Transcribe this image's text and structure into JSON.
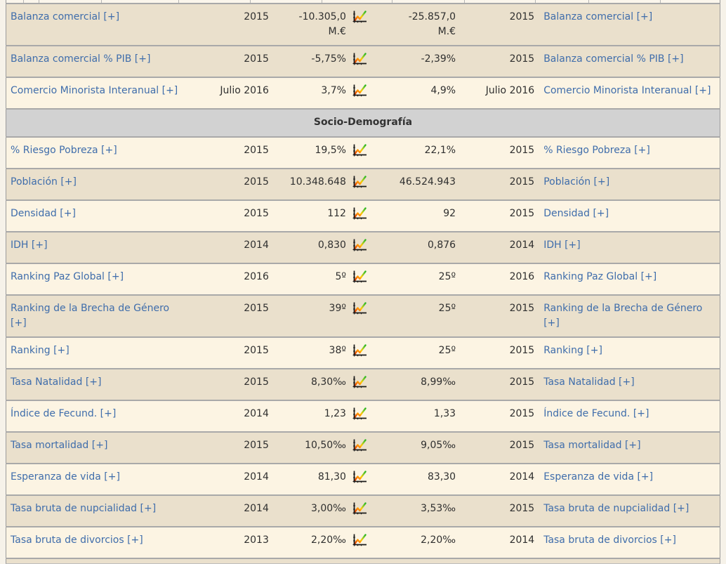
{
  "table": {
    "section_header": "Socio-Demografía",
    "chart_icon": "line-chart-icon",
    "columns": [
      "indicator-left",
      "date-left",
      "value-left",
      "chart",
      "value-right",
      "date-right",
      "indicator-right"
    ],
    "rows": [
      {
        "type": "data",
        "bg": "tan",
        "name": "Balanza comercial [+]",
        "date_left": "2015",
        "value_left": [
          "-10.305,0",
          "M.€"
        ],
        "value_right": [
          "-25.857,0",
          "M.€"
        ],
        "date_right": "2015"
      },
      {
        "type": "data",
        "bg": "tan",
        "name": "Balanza comercial % PIB [+]",
        "date_left": "2015",
        "value_left": [
          "-5,75%"
        ],
        "value_right": [
          "-2,39%"
        ],
        "date_right": "2015"
      },
      {
        "type": "data",
        "bg": "cream",
        "name": "Comercio Minorista Interanual [+]",
        "date_left": "Julio 2016",
        "value_left": [
          "3,7%"
        ],
        "value_right": [
          "4,9%"
        ],
        "date_right": "Julio 2016"
      },
      {
        "type": "section",
        "label": "Socio-Demografía"
      },
      {
        "type": "data",
        "bg": "cream",
        "name": "% Riesgo Pobreza [+]",
        "date_left": "2015",
        "value_left": [
          "19,5%"
        ],
        "value_right": [
          "22,1%"
        ],
        "date_right": "2015"
      },
      {
        "type": "data",
        "bg": "tan",
        "name": "Población [+]",
        "date_left": "2015",
        "value_left": [
          "10.348.648"
        ],
        "value_right": [
          "46.524.943"
        ],
        "date_right": "2015"
      },
      {
        "type": "data",
        "bg": "cream",
        "name": "Densidad [+]",
        "date_left": "2015",
        "value_left": [
          "112"
        ],
        "value_right": [
          "92"
        ],
        "date_right": "2015"
      },
      {
        "type": "data",
        "bg": "tan",
        "name": "IDH [+]",
        "date_left": "2014",
        "value_left": [
          "0,830"
        ],
        "value_right": [
          "0,876"
        ],
        "date_right": "2014"
      },
      {
        "type": "data",
        "bg": "cream",
        "name": "Ranking Paz Global [+]",
        "date_left": "2016",
        "value_left": [
          "5º"
        ],
        "value_right": [
          "25º"
        ],
        "date_right": "2016"
      },
      {
        "type": "data",
        "bg": "tan",
        "name": "Ranking de la Brecha de Género [+]",
        "date_left": "2015",
        "value_left": [
          "39º"
        ],
        "value_right": [
          "25º"
        ],
        "date_right": "2015"
      },
      {
        "type": "data",
        "bg": "cream",
        "name": "Ranking [+]",
        "date_left": "2015",
        "value_left": [
          "38º"
        ],
        "value_right": [
          "25º"
        ],
        "date_right": "2015"
      },
      {
        "type": "data",
        "bg": "tan",
        "name": "Tasa Natalidad [+]",
        "date_left": "2015",
        "value_left": [
          "8,30‰"
        ],
        "value_right": [
          "8,99‰"
        ],
        "date_right": "2015"
      },
      {
        "type": "data",
        "bg": "cream",
        "name": "Índice de Fecund. [+]",
        "date_left": "2014",
        "value_left": [
          "1,23"
        ],
        "value_right": [
          "1,33"
        ],
        "date_right": "2015"
      },
      {
        "type": "data",
        "bg": "tan",
        "name": "Tasa mortalidad [+]",
        "date_left": "2015",
        "value_left": [
          "10,50‰"
        ],
        "value_right": [
          "9,05‰"
        ],
        "date_right": "2015"
      },
      {
        "type": "data",
        "bg": "cream",
        "name": "Esperanza de vida [+]",
        "date_left": "2014",
        "value_left": [
          "81,30"
        ],
        "value_right": [
          "83,30"
        ],
        "date_right": "2014"
      },
      {
        "type": "data",
        "bg": "tan",
        "name": "Tasa bruta de nupcialidad [+]",
        "date_left": "2014",
        "value_left": [
          "3,00‰"
        ],
        "value_right": [
          "3,53‰"
        ],
        "date_right": "2015"
      },
      {
        "type": "data",
        "bg": "cream",
        "name": "Tasa bruta de divorcios [+]",
        "date_left": "2013",
        "value_left": [
          "2,20‰"
        ],
        "value_right": [
          "2,20‰"
        ],
        "date_right": "2014"
      }
    ]
  },
  "colors": {
    "row_tan": "#eae0cc",
    "row_cream": "#fcf4e3",
    "section_gray": "#d2d2d2",
    "border_gray": "#a9a9a9",
    "link_blue": "#3f6dab",
    "text_dark": "#2f2f2f",
    "icon_line_red": "#cc2200",
    "icon_line_yellow": "#ffcc00",
    "icon_line_green": "#2bb522"
  }
}
